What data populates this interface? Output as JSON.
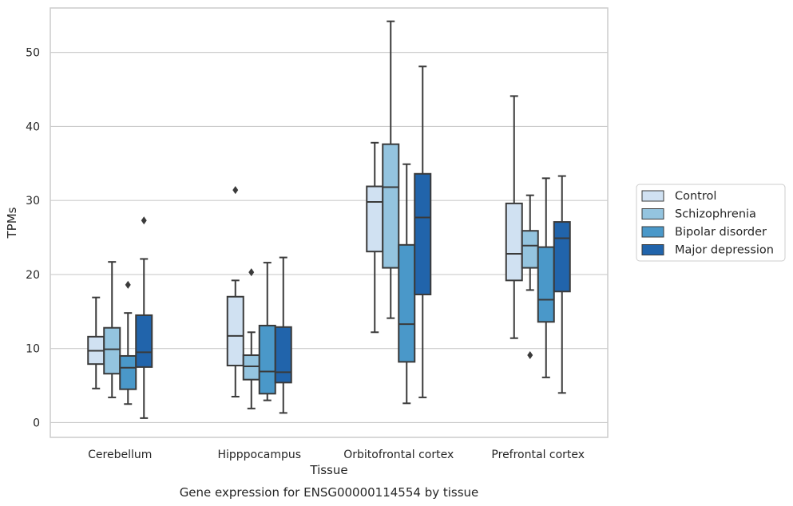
{
  "caption": "Gene expression for ENSG00000114554 by tissue",
  "chart_data": {
    "type": "box",
    "xlabel": "Tissue",
    "ylabel": "TPMs",
    "ylim": [
      -2,
      56
    ],
    "yticks": [
      0,
      10,
      20,
      30,
      40,
      50
    ],
    "grid": true,
    "legend_position": "right",
    "categories": [
      "Cerebellum",
      "Hipppocampus",
      "Orbitofrontal cortex",
      "Prefrontal cortex"
    ],
    "series": [
      {
        "name": "Control",
        "color": "#d0e1f2",
        "boxes": [
          {
            "whisker_low": 4.6,
            "q1": 7.9,
            "median": 9.7,
            "q3": 11.6,
            "whisker_high": 16.9,
            "outliers": []
          },
          {
            "whisker_low": 3.5,
            "q1": 7.7,
            "median": 11.7,
            "q3": 17.0,
            "whisker_high": 19.2,
            "outliers": [
              31.4
            ]
          },
          {
            "whisker_low": 12.2,
            "q1": 23.1,
            "median": 29.8,
            "q3": 31.9,
            "whisker_high": 37.8,
            "outliers": []
          },
          {
            "whisker_low": 11.4,
            "q1": 19.2,
            "median": 22.8,
            "q3": 29.6,
            "whisker_high": 44.1,
            "outliers": []
          }
        ]
      },
      {
        "name": "Schizophrenia",
        "color": "#94c4df",
        "boxes": [
          {
            "whisker_low": 3.4,
            "q1": 6.6,
            "median": 9.9,
            "q3": 12.8,
            "whisker_high": 21.7,
            "outliers": []
          },
          {
            "whisker_low": 1.9,
            "q1": 5.8,
            "median": 7.6,
            "q3": 9.1,
            "whisker_high": 12.2,
            "outliers": [
              20.3
            ]
          },
          {
            "whisker_low": 14.1,
            "q1": 20.9,
            "median": 31.8,
            "q3": 37.6,
            "whisker_high": 54.2,
            "outliers": []
          },
          {
            "whisker_low": 17.9,
            "q1": 20.9,
            "median": 23.9,
            "q3": 25.9,
            "whisker_high": 30.7,
            "outliers": [
              9.1
            ]
          }
        ]
      },
      {
        "name": "Bipolar disorder",
        "color": "#4a98c9",
        "boxes": [
          {
            "whisker_low": 2.5,
            "q1": 4.5,
            "median": 7.4,
            "q3": 9.0,
            "whisker_high": 14.8,
            "outliers": [
              18.6
            ]
          },
          {
            "whisker_low": 3.0,
            "q1": 3.9,
            "median": 6.9,
            "q3": 13.1,
            "whisker_high": 21.6,
            "outliers": []
          },
          {
            "whisker_low": 2.6,
            "q1": 8.2,
            "median": 13.3,
            "q3": 24.0,
            "whisker_high": 34.9,
            "outliers": []
          },
          {
            "whisker_low": 6.1,
            "q1": 13.6,
            "median": 16.6,
            "q3": 23.7,
            "whisker_high": 33.0,
            "outliers": []
          }
        ]
      },
      {
        "name": "Major depression",
        "color": "#2164ab",
        "boxes": [
          {
            "whisker_low": 0.6,
            "q1": 7.5,
            "median": 9.5,
            "q3": 14.5,
            "whisker_high": 22.1,
            "outliers": [
              27.3
            ]
          },
          {
            "whisker_low": 1.3,
            "q1": 5.4,
            "median": 6.8,
            "q3": 12.9,
            "whisker_high": 22.3,
            "outliers": []
          },
          {
            "whisker_low": 3.4,
            "q1": 17.3,
            "median": 27.7,
            "q3": 33.6,
            "whisker_high": 48.1,
            "outliers": []
          },
          {
            "whisker_low": 4.0,
            "q1": 17.7,
            "median": 24.9,
            "q3": 27.1,
            "whisker_high": 33.3,
            "outliers": []
          }
        ]
      }
    ]
  }
}
